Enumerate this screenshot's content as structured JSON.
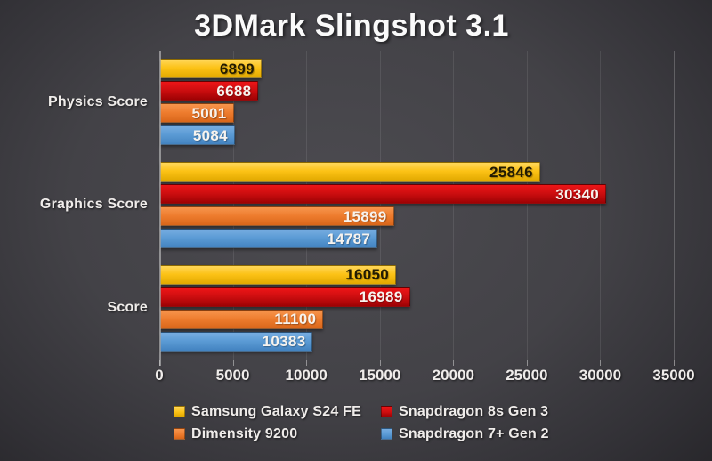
{
  "chart_data": {
    "type": "bar",
    "orientation": "horizontal",
    "title": "3DMark Slingshot 3.1",
    "categories": [
      "Physics Score",
      "Graphics Score",
      "Score"
    ],
    "series": [
      {
        "name": "Samsung Galaxy S24 FE",
        "color": "#FCC216",
        "color_top": "#FFD75A",
        "color_bottom": "#E2A900",
        "label_color": "#221b02",
        "values": [
          6899,
          25846,
          16050
        ]
      },
      {
        "name": "Snapdragon 8s Gen 3",
        "color": "#CE0E10",
        "color_top": "#EC1517",
        "color_bottom": "#9E0204",
        "label_color": "#f7f3ee",
        "values": [
          6688,
          30340,
          16989
        ]
      },
      {
        "name": "Dimensity 9200",
        "color": "#EE7D2F",
        "color_top": "#F7954D",
        "color_bottom": "#D9661A",
        "label_color": "#f7f3ee",
        "values": [
          5001,
          15899,
          11100
        ]
      },
      {
        "name": "Snapdragon 7+ Gen 2",
        "color": "#5B9BD5",
        "color_top": "#76ACE0",
        "color_bottom": "#4383C0",
        "label_color": "#f7f3ee",
        "values": [
          5084,
          14787,
          10383
        ]
      }
    ],
    "xlim": [
      0,
      35000
    ],
    "x_ticks": [
      "0",
      "5000",
      "10000",
      "15000",
      "20000",
      "25000",
      "30000",
      "35000"
    ],
    "grid": true,
    "legend_position": "bottom",
    "legend_layout": [
      [
        0,
        1
      ],
      [
        2,
        3
      ]
    ]
  },
  "colors": {
    "bg_center": "#4c4b50",
    "bg_mid": "#434247",
    "bg_edge2": "#323136",
    "bg_edge": "#242327",
    "text": "#efecea",
    "axis_line": "rgba(210,210,210,0.55)",
    "gridline": "rgba(235,235,235,0.10)",
    "gridline_last": "rgba(235,235,235,0.24)"
  }
}
